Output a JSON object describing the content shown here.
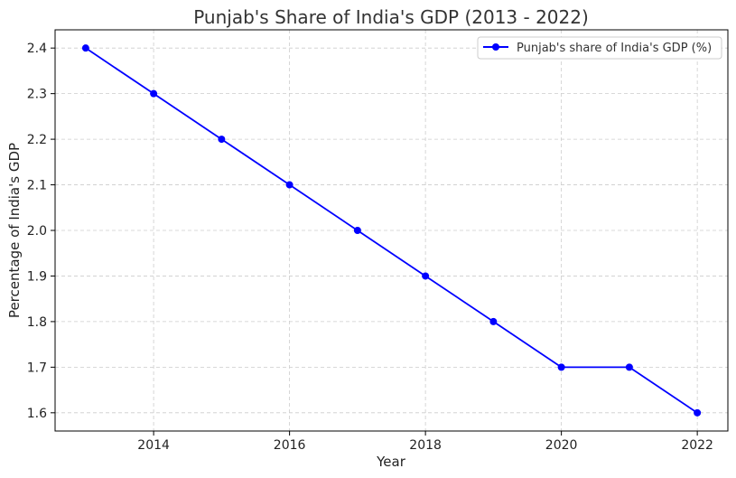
{
  "chart_data": {
    "type": "line",
    "title": "Punjab's Share of India's GDP (2013 - 2022)",
    "xlabel": "Year",
    "ylabel": "Percentage of India's GDP",
    "x": [
      2013,
      2014,
      2015,
      2016,
      2017,
      2018,
      2019,
      2020,
      2021,
      2022
    ],
    "series": [
      {
        "name": "Punjab's share of India's GDP (%)",
        "values": [
          2.4,
          2.3,
          2.2,
          2.1,
          2.0,
          1.9,
          1.8,
          1.7,
          1.7,
          1.6
        ],
        "color": "#0000ff",
        "marker": "circle"
      }
    ],
    "xlim": [
      2012.55,
      2022.45
    ],
    "ylim": [
      1.56,
      2.44
    ],
    "xticks": [
      "2014",
      "2016",
      "2018",
      "2020",
      "2022"
    ],
    "yticks": [
      "1.6",
      "1.7",
      "1.8",
      "1.9",
      "2.0",
      "2.1",
      "2.2",
      "2.3",
      "2.4"
    ],
    "grid": true,
    "legend_position": "upper right"
  }
}
